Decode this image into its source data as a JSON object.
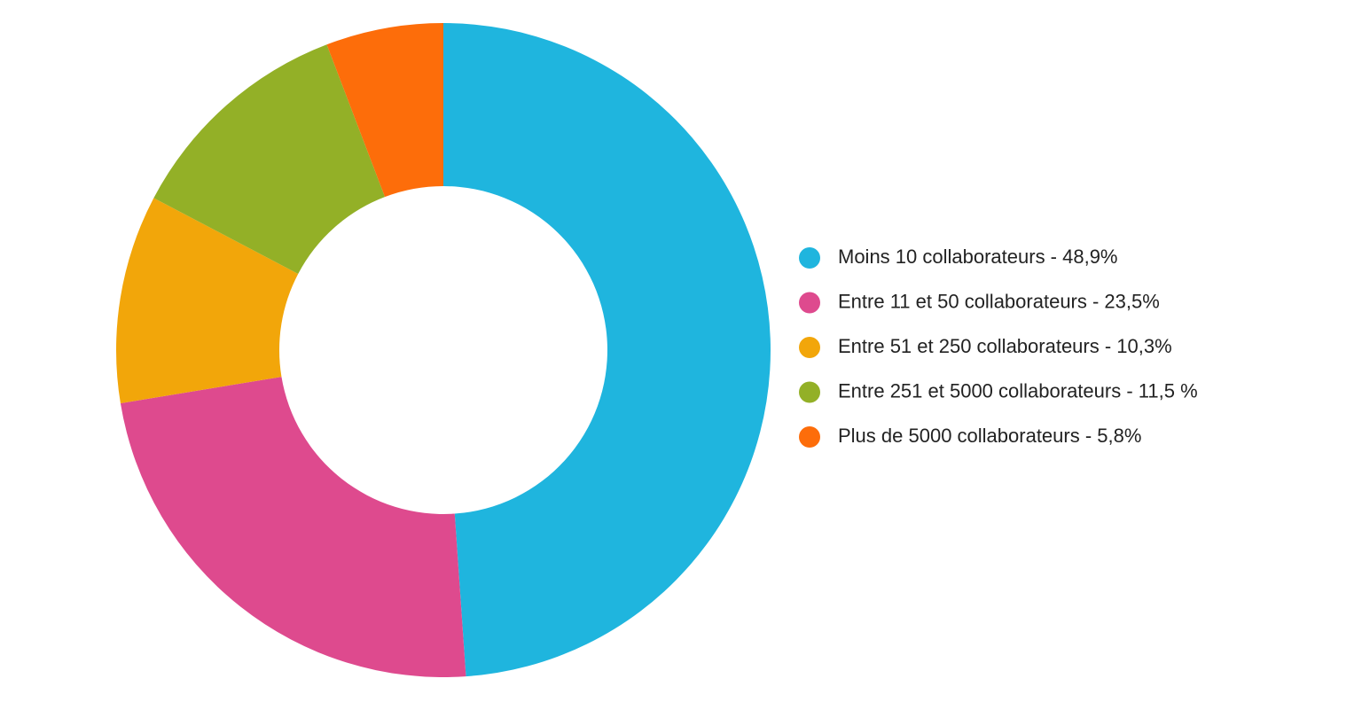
{
  "chart_data": {
    "type": "donut",
    "categories": [
      "Moins 10 collaborateurs - 48,9%",
      "Entre 11 et 50 collaborateurs - 23,5%",
      "Entre 51 et 250 collaborateurs - 10,3%",
      "Entre 251 et 5000 collaborateurs - 11,5 %",
      "Plus de 5000 collaborateurs - 5,8%"
    ],
    "values": [
      48.9,
      23.5,
      10.3,
      11.5,
      5.8
    ],
    "colors": [
      "#1fb5de",
      "#de4a8e",
      "#f2a60a",
      "#93b027",
      "#fd6d0a"
    ],
    "legend": "right"
  }
}
